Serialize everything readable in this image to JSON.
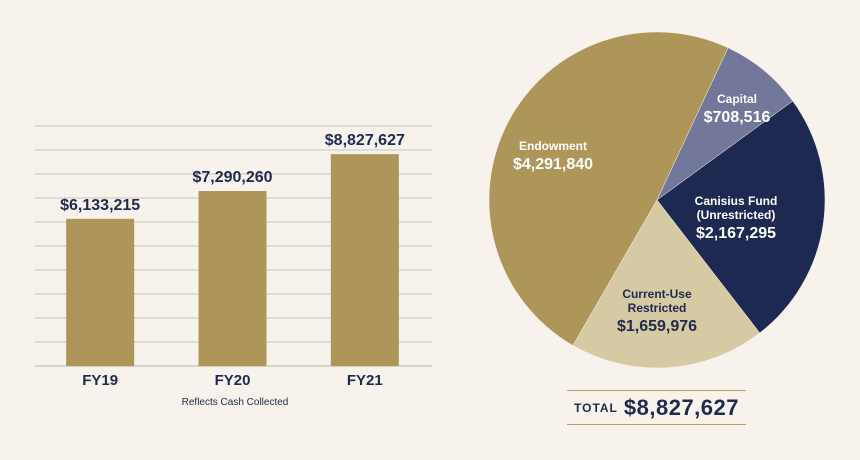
{
  "chart_data": [
    {
      "type": "bar",
      "categories": [
        "FY19",
        "FY20",
        "FY21"
      ],
      "values": [
        6133215,
        7290260,
        8827627
      ],
      "value_labels": [
        "$6,133,215",
        "$7,290,260",
        "$8,827,627"
      ],
      "ylim": [
        0,
        10000000
      ],
      "grid": true,
      "color": "#ae965a",
      "caption": "Reflects Cash Collected"
    },
    {
      "type": "pie",
      "slices": [
        {
          "name_lines": [
            "Endowment"
          ],
          "value": 4291840,
          "label": "$4,291,840",
          "color": "#ae965a"
        },
        {
          "name_lines": [
            "Capital"
          ],
          "value": 708516,
          "label": "$708,516",
          "color": "#737799"
        },
        {
          "name_lines": [
            "Canisius Fund",
            "(Unrestricted)"
          ],
          "value": 2167295,
          "label": "$2,167,295",
          "color": "#1d2950"
        },
        {
          "name_lines": [
            "Current-Use",
            "Restricted"
          ],
          "value": 1659976,
          "label": "$1,659,976",
          "color": "#d6caa5"
        }
      ]
    }
  ],
  "total": {
    "label": "TOTAL",
    "value": "$8,827,627"
  },
  "colors": {
    "text_dark": "#1f2a4d",
    "gridline": "#d9d4cc",
    "background": "#f7f2ec"
  }
}
